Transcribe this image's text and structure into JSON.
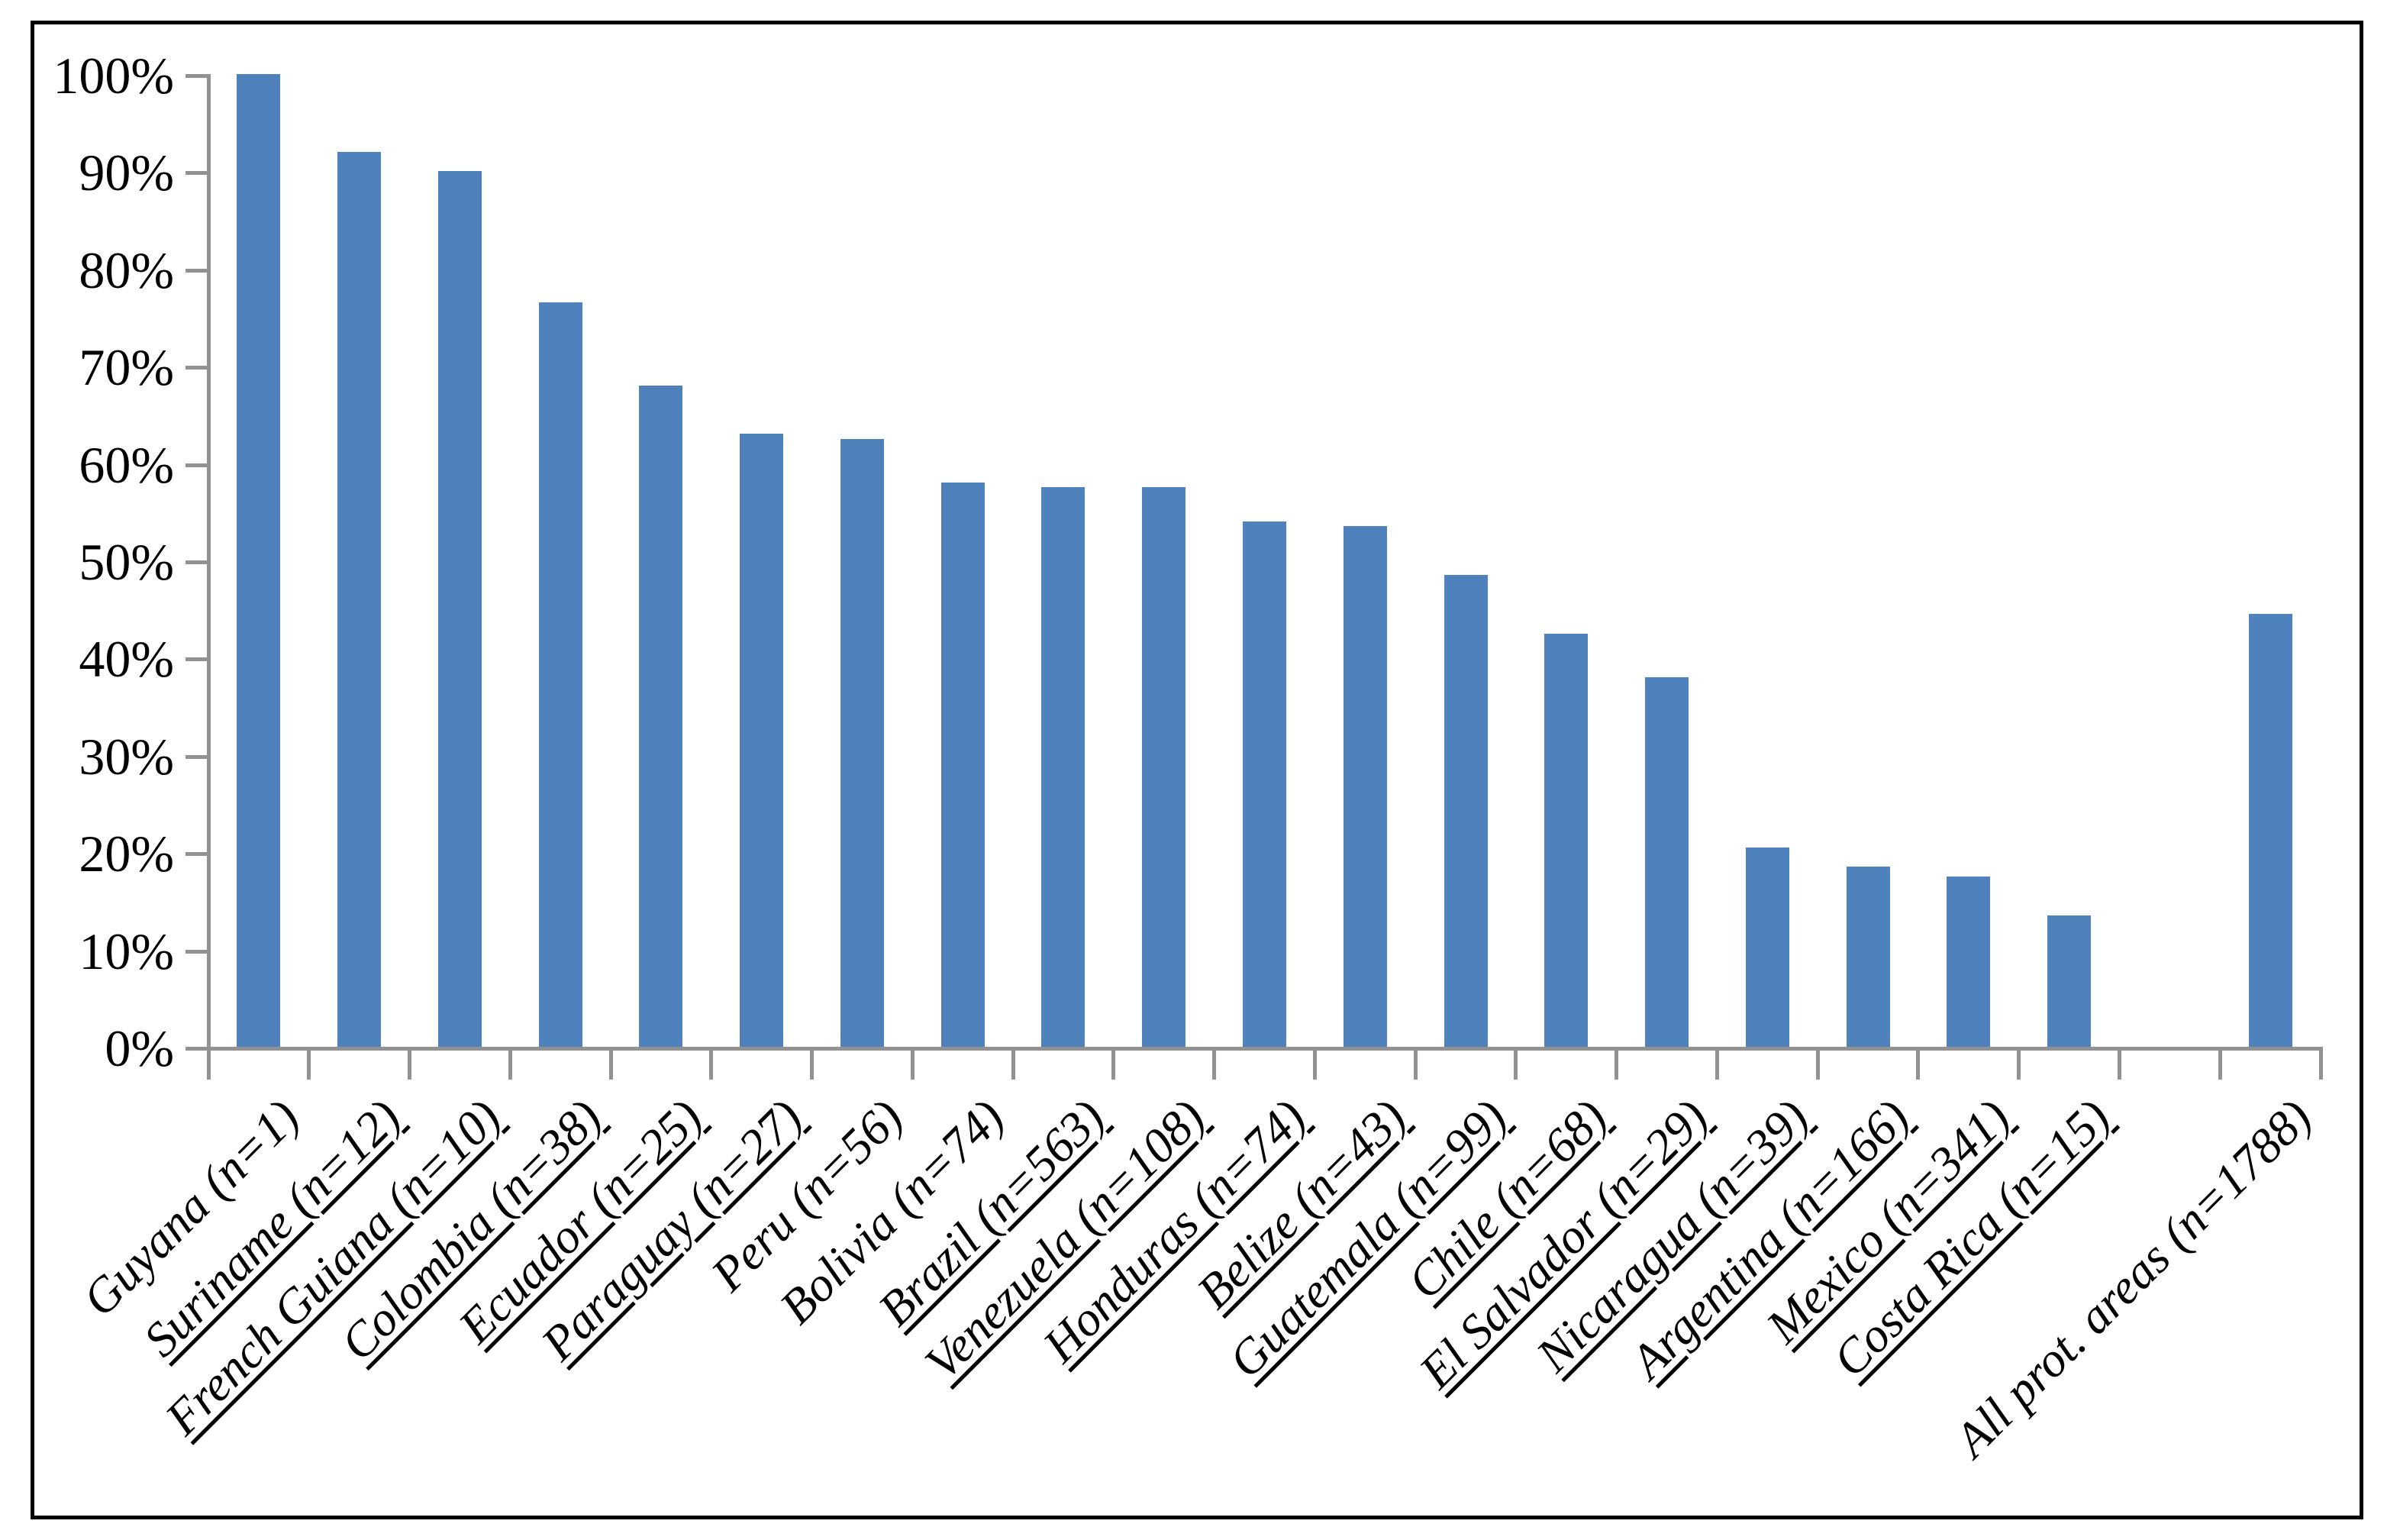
{
  "chart_data": {
    "type": "bar",
    "title": "",
    "xlabel": "",
    "ylabel": "",
    "ylim": [
      0,
      100
    ],
    "ytick_step": 10,
    "ytick_labels": [
      "0%",
      "10%",
      "20%",
      "30%",
      "40%",
      "50%",
      "60%",
      "70%",
      "80%",
      "90%",
      "100%"
    ],
    "grid": false,
    "legend": false,
    "bar_color": "#4f81bd",
    "axis_color": "#929292",
    "border_color": "#000000",
    "categories": [
      "Guyana (n=1)",
      "Suriname (n=12)",
      "French Guiana (n=10)",
      "Colombia (n=38)",
      "Ecuador (n=25)",
      "Paraguay (n=27)",
      "Peru (n=56)",
      "Bolivia (n=74)",
      "Brazil (n=563)",
      "Venezuela (n=108)",
      "Honduras (n=74)",
      "Belize (n=43)",
      "Guatemala (n=99)",
      "Chile (n=68)",
      "El Salvador (n=29)",
      "Nicaragua (n=39)",
      "Argentina (n=166)",
      "Mexico (n=341)",
      "Costa Rica (n=15)",
      "",
      "All prot. areas (n=1788)"
    ],
    "values": [
      100,
      92,
      90,
      76.5,
      68,
      63,
      62.5,
      58,
      57.5,
      57.5,
      54,
      53.5,
      48.5,
      42.5,
      38,
      20.5,
      18.5,
      17.5,
      13.5,
      null,
      44.5
    ],
    "underlined": [
      false,
      true,
      true,
      true,
      true,
      true,
      false,
      false,
      true,
      true,
      true,
      true,
      true,
      true,
      true,
      true,
      true,
      true,
      true,
      false,
      false
    ]
  }
}
